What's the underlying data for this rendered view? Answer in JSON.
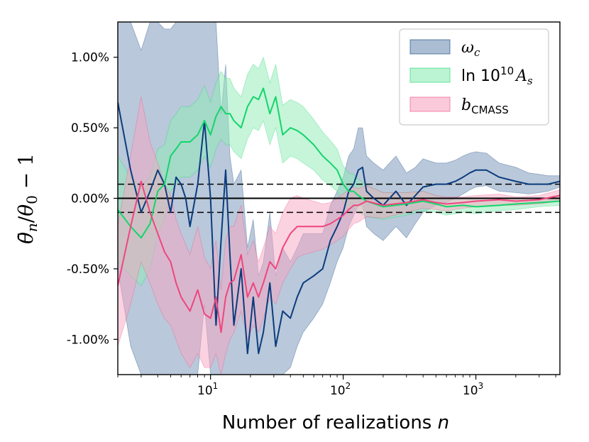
{
  "chart_data": {
    "type": "line",
    "xscale": "log",
    "xlim": [
      2,
      4300
    ],
    "ylim": [
      -1.25,
      1.25
    ],
    "xlabel": "Number of realizations n",
    "ylabel": "θ̄n/θ0 − 1",
    "y_ticks": [
      {
        "value": 1.0,
        "label": "1.00%"
      },
      {
        "value": 0.5,
        "label": "0.50%"
      },
      {
        "value": 0.0,
        "label": "0.00%"
      },
      {
        "value": -0.5,
        "label": "-0.50%"
      },
      {
        "value": -1.0,
        "label": "-1.00%"
      }
    ],
    "x_ticks": [
      {
        "value": 10,
        "base": "10",
        "exp": "1"
      },
      {
        "value": 100,
        "base": "10",
        "exp": "2"
      },
      {
        "value": 1000,
        "base": "10",
        "exp": "3"
      }
    ],
    "reference_lines": [
      {
        "y": 0.0,
        "style": "solid"
      },
      {
        "y": 0.1,
        "style": "dashed"
      },
      {
        "y": -0.1,
        "style": "dashed"
      }
    ],
    "legend_position": "top-right",
    "series": [
      {
        "name": "omega_c",
        "label": "ωc",
        "label_main": "ω",
        "label_sub": "c",
        "color": "#0b3c7d",
        "fill": "#7391b5",
        "x": [
          2,
          2.5,
          3,
          3.5,
          4,
          4.5,
          5,
          5.5,
          6,
          6.5,
          7,
          8,
          9,
          10,
          11,
          12,
          13,
          14,
          15,
          17,
          19,
          21,
          23,
          25,
          28,
          31,
          35,
          40,
          45,
          50,
          60,
          70,
          80,
          90,
          100,
          110,
          120,
          130,
          140,
          150,
          170,
          200,
          250,
          300,
          350,
          400,
          500,
          600,
          700,
          800,
          900,
          1000,
          1200,
          1500,
          2000,
          2500,
          3000,
          3500,
          4300
        ],
        "y": [
          0.68,
          0.2,
          -0.1,
          0.05,
          0.2,
          0.1,
          -0.1,
          0.15,
          0.1,
          0.0,
          -0.2,
          0.1,
          0.55,
          0.0,
          -0.9,
          -0.3,
          0.2,
          -0.4,
          -0.9,
          -0.5,
          -1.1,
          -0.7,
          -1.1,
          -0.95,
          -0.6,
          -1.05,
          -0.8,
          -0.85,
          -0.7,
          -0.6,
          -0.55,
          -0.5,
          -0.3,
          -0.2,
          -0.1,
          0.05,
          0.1,
          0.2,
          0.22,
          0.05,
          0.0,
          -0.05,
          0.05,
          -0.05,
          0.02,
          0.08,
          0.1,
          0.1,
          0.12,
          0.15,
          0.18,
          0.2,
          0.2,
          0.15,
          0.12,
          0.1,
          0.1,
          0.1,
          0.12
        ],
        "lower": [
          -0.5,
          -1.05,
          -1.25,
          -1.25,
          -1.25,
          -1.25,
          -1.25,
          -1.25,
          -1.25,
          -1.25,
          -1.25,
          -1.25,
          -0.75,
          -1.25,
          -1.25,
          -1.25,
          -1.25,
          -1.25,
          -1.25,
          -1.25,
          -1.25,
          -1.25,
          -1.25,
          -1.25,
          -1.25,
          -1.25,
          -1.25,
          -1.2,
          -1.05,
          -0.95,
          -0.85,
          -0.75,
          -0.6,
          -0.45,
          -0.35,
          -0.2,
          -0.12,
          -0.05,
          -0.05,
          -0.2,
          -0.25,
          -0.3,
          -0.2,
          -0.28,
          -0.18,
          -0.1,
          -0.05,
          -0.03,
          0.0,
          0.03,
          0.06,
          0.08,
          0.09,
          0.05,
          0.04,
          0.03,
          0.04,
          0.05,
          0.08
        ],
        "upper": [
          1.25,
          1.25,
          1.05,
          1.25,
          1.25,
          1.2,
          1.2,
          1.25,
          1.25,
          1.25,
          1.25,
          1.25,
          1.25,
          1.25,
          1.25,
          0.6,
          0.95,
          0.3,
          0.1,
          0.2,
          -0.35,
          -0.15,
          -0.55,
          -0.45,
          -0.1,
          -0.55,
          -0.35,
          -0.45,
          -0.35,
          -0.25,
          -0.25,
          -0.25,
          -0.05,
          0.05,
          0.15,
          0.3,
          0.35,
          0.5,
          0.5,
          0.3,
          0.25,
          0.2,
          0.3,
          0.18,
          0.22,
          0.28,
          0.25,
          0.25,
          0.27,
          0.3,
          0.32,
          0.33,
          0.32,
          0.25,
          0.22,
          0.18,
          0.17,
          0.16,
          0.16
        ]
      },
      {
        "name": "ln_As",
        "label": "ln 10^10 As",
        "label_main": "ln 10",
        "label_sup": "10",
        "label_tail": "A",
        "label_sub": "s",
        "color": "#14d56a",
        "fill": "#8eecb6",
        "x": [
          2,
          2.5,
          3,
          3.5,
          4,
          4.5,
          5,
          5.5,
          6,
          7,
          8,
          9,
          10,
          11,
          12,
          13,
          14,
          15,
          17,
          19,
          21,
          23,
          25,
          28,
          31,
          35,
          40,
          45,
          50,
          60,
          70,
          80,
          90,
          100,
          110,
          120,
          130,
          150,
          200,
          300,
          400,
          500,
          600,
          800,
          1000,
          1500,
          2000,
          3000,
          4300
        ],
        "y": [
          -0.08,
          -0.2,
          -0.28,
          -0.18,
          0.05,
          0.1,
          0.3,
          0.35,
          0.4,
          0.4,
          0.45,
          0.55,
          0.45,
          0.58,
          0.65,
          0.6,
          0.6,
          0.55,
          0.5,
          0.65,
          0.72,
          0.7,
          0.78,
          0.6,
          0.72,
          0.45,
          0.5,
          0.48,
          0.45,
          0.38,
          0.3,
          0.25,
          0.2,
          0.1,
          0.05,
          0.05,
          0.02,
          -0.02,
          -0.06,
          -0.04,
          -0.02,
          -0.04,
          -0.06,
          -0.05,
          -0.06,
          -0.05,
          -0.04,
          -0.03,
          -0.02
        ],
        "lower": [
          -0.45,
          -0.55,
          -0.62,
          -0.5,
          -0.25,
          -0.15,
          0.05,
          0.1,
          0.15,
          0.15,
          0.2,
          0.3,
          0.22,
          0.35,
          0.42,
          0.38,
          0.38,
          0.33,
          0.28,
          0.42,
          0.5,
          0.48,
          0.55,
          0.38,
          0.5,
          0.25,
          0.3,
          0.28,
          0.25,
          0.2,
          0.13,
          0.09,
          0.05,
          -0.03,
          -0.08,
          -0.07,
          -0.1,
          -0.13,
          -0.15,
          -0.12,
          -0.09,
          -0.1,
          -0.12,
          -0.1,
          -0.11,
          -0.09,
          -0.08,
          -0.06,
          -0.05
        ],
        "upper": [
          0.3,
          0.15,
          0.08,
          0.15,
          0.35,
          0.38,
          0.55,
          0.6,
          0.65,
          0.65,
          0.7,
          0.8,
          0.68,
          0.82,
          0.9,
          0.85,
          0.85,
          0.78,
          0.72,
          0.88,
          0.95,
          0.92,
          1.0,
          0.82,
          0.95,
          0.66,
          0.7,
          0.68,
          0.65,
          0.56,
          0.47,
          0.41,
          0.35,
          0.23,
          0.18,
          0.17,
          0.14,
          0.09,
          0.04,
          0.04,
          0.05,
          0.02,
          0.0,
          0.0,
          -0.01,
          -0.01,
          0.0,
          0.0,
          0.01
        ]
      },
      {
        "name": "b_CMASS",
        "label": "bCMASS",
        "label_main": "b",
        "label_sub": "CMASS",
        "color": "#f0457e",
        "fill": "#f8a6c2",
        "x": [
          2,
          2.5,
          3,
          3.5,
          4,
          4.5,
          5,
          5.5,
          6,
          7,
          8,
          9,
          10,
          11,
          12,
          13,
          14,
          15,
          17,
          19,
          21,
          23,
          25,
          28,
          31,
          35,
          40,
          45,
          50,
          60,
          70,
          80,
          90,
          100,
          110,
          120,
          130,
          150,
          200,
          300,
          400,
          500,
          600,
          800,
          1000,
          1500,
          2000,
          3000,
          4300
        ],
        "y": [
          -0.62,
          -0.2,
          0.12,
          -0.1,
          -0.25,
          -0.38,
          -0.45,
          -0.6,
          -0.7,
          -0.8,
          -0.65,
          -0.82,
          -0.85,
          -0.7,
          -0.95,
          -0.7,
          -0.6,
          -0.58,
          -0.4,
          -0.7,
          -0.6,
          -0.7,
          -0.6,
          -0.45,
          -0.5,
          -0.35,
          -0.25,
          -0.2,
          -0.2,
          -0.2,
          -0.2,
          -0.18,
          -0.15,
          -0.12,
          -0.08,
          -0.05,
          -0.05,
          -0.02,
          -0.05,
          -0.03,
          -0.01,
          -0.03,
          -0.04,
          -0.03,
          -0.02,
          -0.01,
          -0.02,
          -0.01,
          0.02
        ],
        "lower": [
          -1.05,
          -0.75,
          -0.45,
          -0.6,
          -0.75,
          -0.85,
          -0.9,
          -1.0,
          -1.1,
          -1.2,
          -1.1,
          -1.2,
          -1.2,
          -1.1,
          -1.25,
          -1.1,
          -1.0,
          -0.95,
          -0.8,
          -1.0,
          -0.9,
          -0.95,
          -0.85,
          -0.7,
          -0.75,
          -0.6,
          -0.5,
          -0.42,
          -0.4,
          -0.38,
          -0.36,
          -0.33,
          -0.3,
          -0.27,
          -0.22,
          -0.18,
          -0.17,
          -0.13,
          -0.14,
          -0.1,
          -0.07,
          -0.08,
          -0.09,
          -0.07,
          -0.06,
          -0.05,
          -0.05,
          -0.04,
          -0.02
        ],
        "upper": [
          -0.2,
          0.3,
          0.72,
          0.4,
          0.25,
          0.1,
          0.02,
          -0.15,
          -0.25,
          -0.4,
          -0.2,
          -0.42,
          -0.5,
          -0.3,
          -0.65,
          -0.3,
          -0.2,
          -0.2,
          -0.05,
          -0.4,
          -0.3,
          -0.45,
          -0.35,
          -0.2,
          -0.25,
          -0.1,
          0.0,
          0.02,
          0.0,
          -0.02,
          -0.04,
          -0.03,
          0.0,
          0.03,
          0.06,
          0.08,
          0.07,
          0.09,
          0.04,
          0.04,
          0.05,
          0.02,
          0.01,
          0.01,
          0.02,
          0.03,
          0.01,
          0.02,
          0.06
        ]
      }
    ]
  }
}
